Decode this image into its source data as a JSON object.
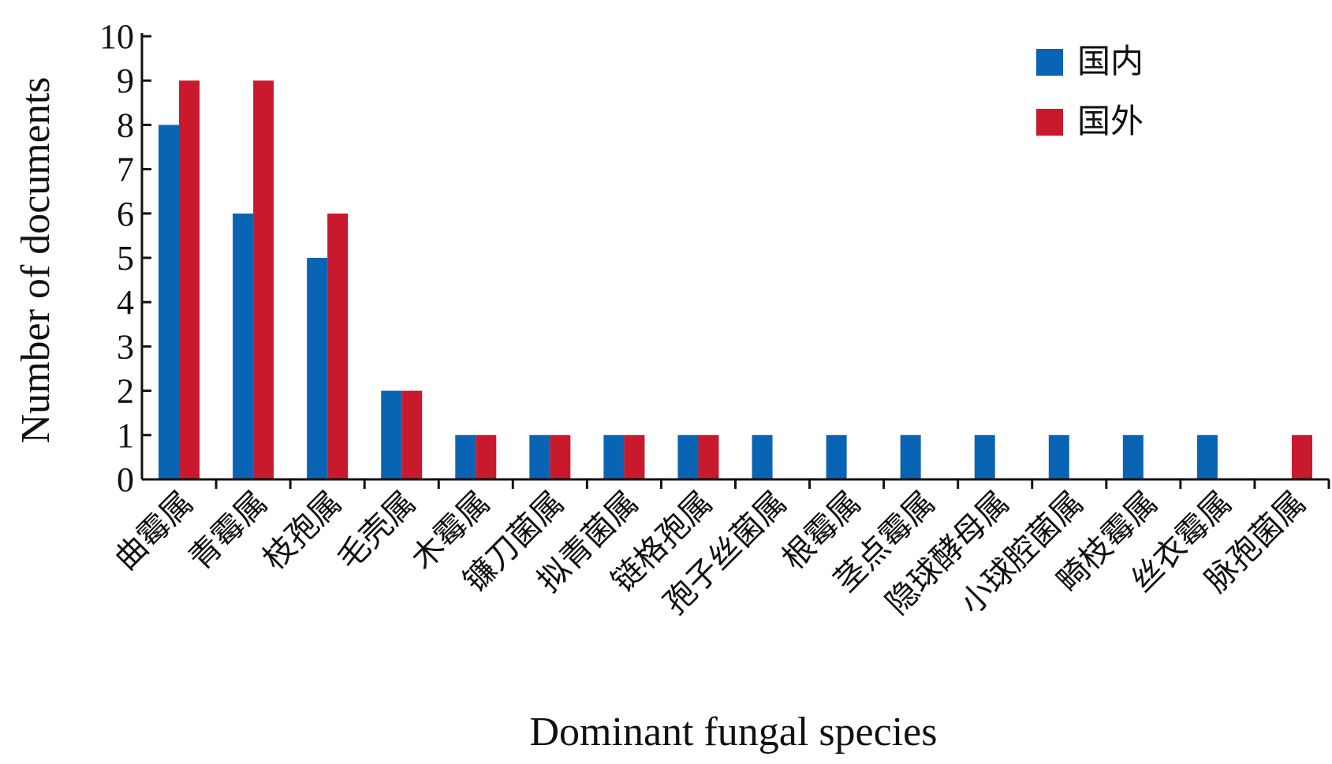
{
  "chart_data": {
    "type": "bar",
    "xlabel": "Dominant fungal species",
    "ylabel": "Number of documents",
    "ylim": [
      0,
      10
    ],
    "yticks": [
      "0",
      "1",
      "2",
      "3",
      "4",
      "5",
      "6",
      "7",
      "8",
      "9",
      "10"
    ],
    "grid": false,
    "legend_position": "top-right",
    "categories": [
      "曲霉属",
      "青霉属",
      "枝孢属",
      "毛壳属",
      "木霉属",
      "镰刀菌属",
      "拟青菌属",
      "链格孢属",
      "孢子丝菌属",
      "根霉属",
      "茎点霉属",
      "隐球酵母属",
      "小球腔菌属",
      "畸枝霉属",
      "丝衣霉属",
      "脉孢菌属"
    ],
    "series": [
      {
        "name": "国内",
        "color": "#0a64b4",
        "values": [
          8,
          6,
          5,
          2,
          1,
          1,
          1,
          1,
          1,
          1,
          1,
          1,
          1,
          1,
          1,
          0
        ]
      },
      {
        "name": "国外",
        "color": "#c8192d",
        "values": [
          9,
          9,
          6,
          2,
          1,
          1,
          1,
          1,
          0,
          0,
          0,
          0,
          0,
          0,
          0,
          1
        ]
      }
    ]
  }
}
